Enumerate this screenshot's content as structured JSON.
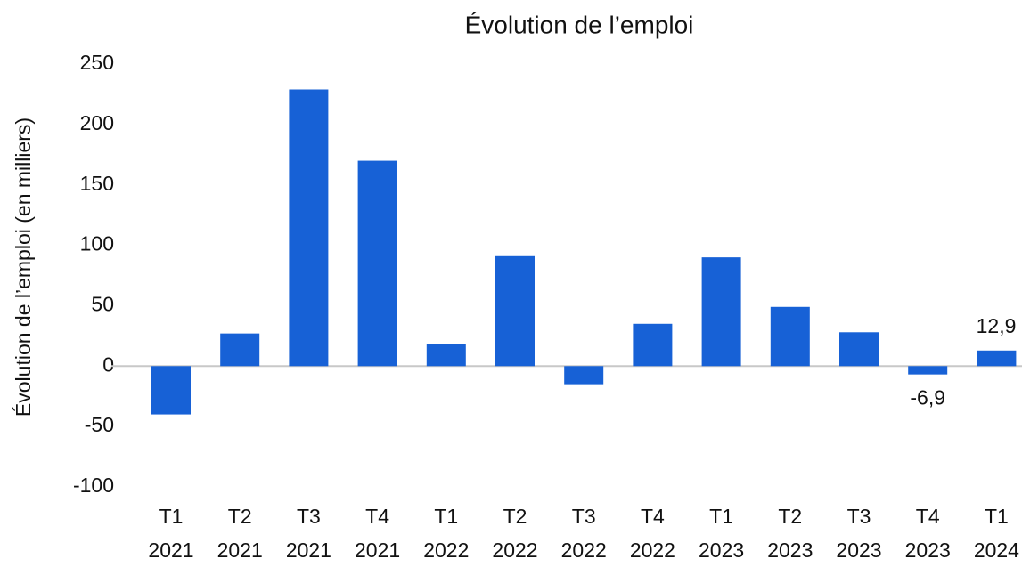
{
  "chart_data": {
    "type": "bar",
    "title": "Évolution de l’emploi",
    "y_label": "Évolution de l’emploi (en milliers)",
    "categories": [
      [
        "T1",
        "2021"
      ],
      [
        "T2",
        "2021"
      ],
      [
        "T3",
        "2021"
      ],
      [
        "T4",
        "2021"
      ],
      [
        "T1",
        "2022"
      ],
      [
        "T2",
        "2022"
      ],
      [
        "T3",
        "2022"
      ],
      [
        "T4",
        "2022"
      ],
      [
        "T1",
        "2023"
      ],
      [
        "T2",
        "2023"
      ],
      [
        "T3",
        "2023"
      ],
      [
        "T4",
        "2023"
      ],
      [
        "T1",
        "2024"
      ]
    ],
    "values": [
      -40,
      27,
      229,
      170,
      18,
      91,
      -15,
      35,
      90,
      49,
      28,
      -6.9,
      12.9
    ],
    "value_labels": [
      null,
      null,
      null,
      null,
      null,
      null,
      null,
      null,
      null,
      null,
      null,
      "-6,9",
      "12,9"
    ],
    "color": "#1761d6",
    "ylim": [
      -100,
      250
    ],
    "yticks": [
      -100,
      -50,
      0,
      50,
      100,
      150,
      200,
      250
    ],
    "grid": false
  }
}
